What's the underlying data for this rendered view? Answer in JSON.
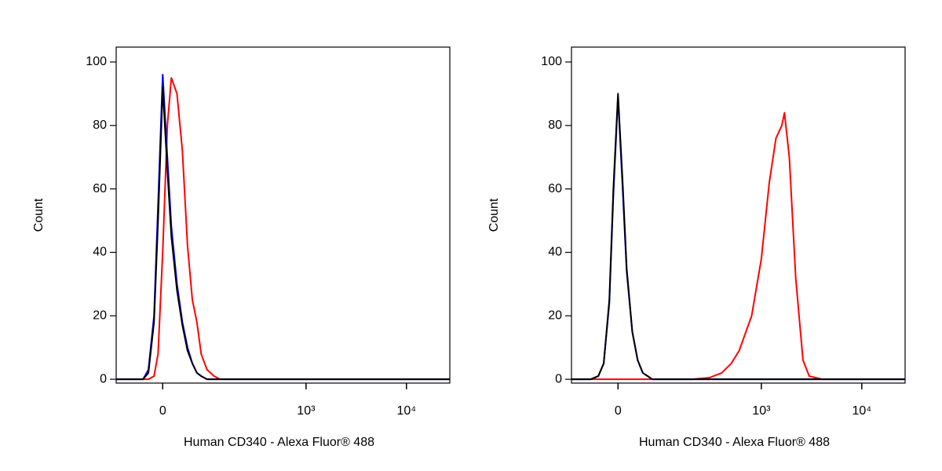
{
  "chart_data": [
    {
      "type": "line",
      "xscale": "biexponential",
      "xlabel": "Human CD340 - Alexa Fluor® 488",
      "ylabel": "Count",
      "xlim": [
        -96,
        27000
      ],
      "xticks": [
        0,
        {
          "value": 1000,
          "label": "10³"
        },
        {
          "value": 10000,
          "label": "10⁴"
        }
      ],
      "ylim": [
        -1.2,
        104.7
      ],
      "yticks": [
        0,
        20,
        40,
        60,
        80,
        100
      ],
      "x": [
        -96,
        -50,
        -35,
        -25,
        -15,
        -8,
        0,
        8,
        15,
        25,
        35,
        45,
        55,
        65,
        75,
        90,
        110,
        130,
        160,
        300,
        1000,
        10000,
        27000
      ],
      "series": [
        {
          "color": "#ff0000",
          "values": [
            0,
            0,
            0,
            0,
            1,
            8,
            40,
            80,
            95,
            90,
            72,
            42,
            25,
            18,
            8,
            3,
            1,
            0,
            0,
            0,
            0,
            0,
            0
          ]
        },
        {
          "color": "#0000ff",
          "values": [
            0,
            0,
            0,
            3,
            20,
            55,
            96,
            70,
            48,
            30,
            18,
            10,
            5,
            2,
            1,
            0,
            0,
            0,
            0,
            0,
            0,
            0,
            0
          ]
        },
        {
          "color": "#000000",
          "values": [
            0,
            0,
            0,
            2,
            18,
            50,
            92,
            66,
            45,
            28,
            17,
            9,
            5,
            2,
            1,
            0,
            0,
            0,
            0,
            0,
            0,
            0,
            0
          ]
        }
      ]
    },
    {
      "type": "line",
      "xscale": "biexponential",
      "xlabel": "Human CD340 - Alexa Fluor® 488",
      "ylabel": "Count",
      "xlim": [
        -96,
        27000
      ],
      "xticks": [
        0,
        {
          "value": 1000,
          "label": "10³"
        },
        {
          "value": 10000,
          "label": "10⁴"
        }
      ],
      "ylim": [
        -1.2,
        104.7
      ],
      "yticks": [
        0,
        20,
        40,
        60,
        80,
        100
      ],
      "x": [
        -96,
        -50,
        -35,
        -25,
        -15,
        -8,
        0,
        8,
        15,
        25,
        35,
        45,
        55,
        65,
        200,
        300,
        400,
        500,
        600,
        800,
        1000,
        1200,
        1400,
        1600,
        1700,
        1900,
        2200,
        2600,
        3000,
        4000,
        27000
      ],
      "series": [
        {
          "color": "#ff0000",
          "values": [
            0,
            0,
            0,
            0,
            0,
            0,
            0,
            0,
            0,
            0,
            0,
            0,
            0,
            0,
            0,
            0.5,
            2,
            5,
            9,
            20,
            38,
            62,
            76,
            80,
            84,
            70,
            32,
            6,
            1,
            0,
            0
          ]
        },
        {
          "color": "#0000ff",
          "values": [
            0,
            0,
            1,
            5,
            24,
            58,
            89,
            60,
            34,
            15,
            6,
            2,
            1,
            0,
            0,
            0,
            0,
            0,
            0,
            0,
            0,
            0,
            0,
            0,
            0,
            0,
            0,
            0,
            0,
            0,
            0
          ]
        },
        {
          "color": "#000000",
          "values": [
            0,
            0,
            1,
            5,
            25,
            60,
            90,
            62,
            35,
            15,
            6,
            2,
            1,
            0,
            0,
            0,
            0,
            0,
            0,
            0,
            0,
            0,
            0,
            0,
            0,
            0,
            0,
            0,
            0,
            0,
            0
          ]
        }
      ]
    }
  ]
}
